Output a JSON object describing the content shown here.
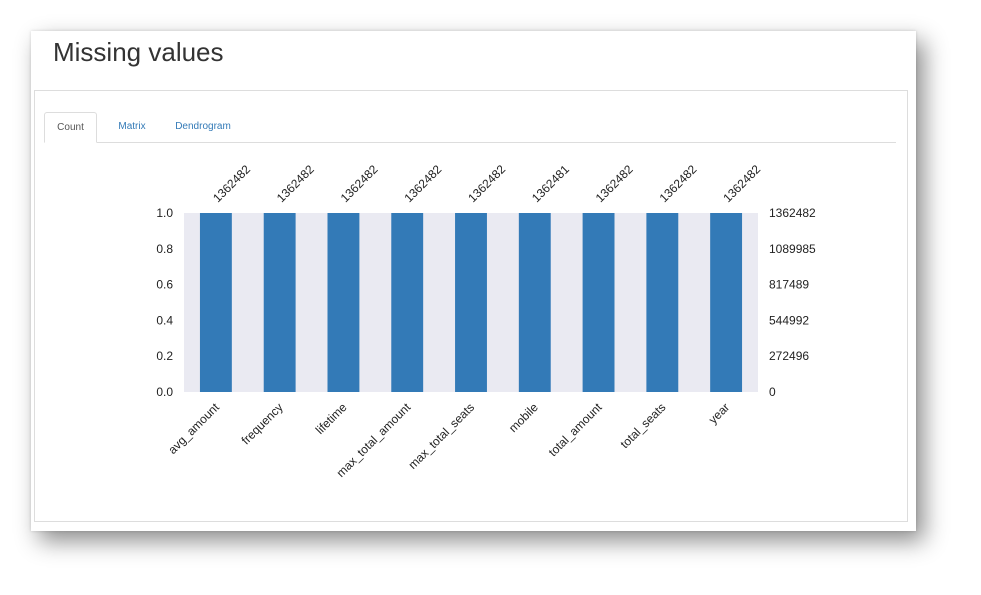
{
  "page": {
    "title": "Missing values"
  },
  "tabs": [
    {
      "label": "Count"
    },
    {
      "label": "Matrix"
    },
    {
      "label": "Dendrogram"
    }
  ],
  "colors": {
    "bar": "#337ab7",
    "plot_background": "#eaeaf2",
    "tab_link": "#337ab7"
  },
  "chart_data": {
    "type": "bar",
    "categories": [
      "avg_amount",
      "frequency",
      "lifetime",
      "max_total_amount",
      "max_total_seats",
      "mobile",
      "total_amount",
      "total_seats",
      "year"
    ],
    "values": [
      1.0,
      1.0,
      1.0,
      1.0,
      1.0,
      1.0,
      1.0,
      1.0,
      1.0
    ],
    "counts": [
      "1362482",
      "1362482",
      "1362482",
      "1362482",
      "1362482",
      "1362481",
      "1362482",
      "1362482",
      "1362482"
    ],
    "ylim": [
      0,
      1.0
    ],
    "left_ticks": [
      "0.0",
      "0.2",
      "0.4",
      "0.6",
      "0.8",
      "1.0"
    ],
    "right_ticks": [
      "0",
      "272496",
      "544992",
      "817489",
      "1089985",
      "1362482"
    ],
    "grid": false
  }
}
